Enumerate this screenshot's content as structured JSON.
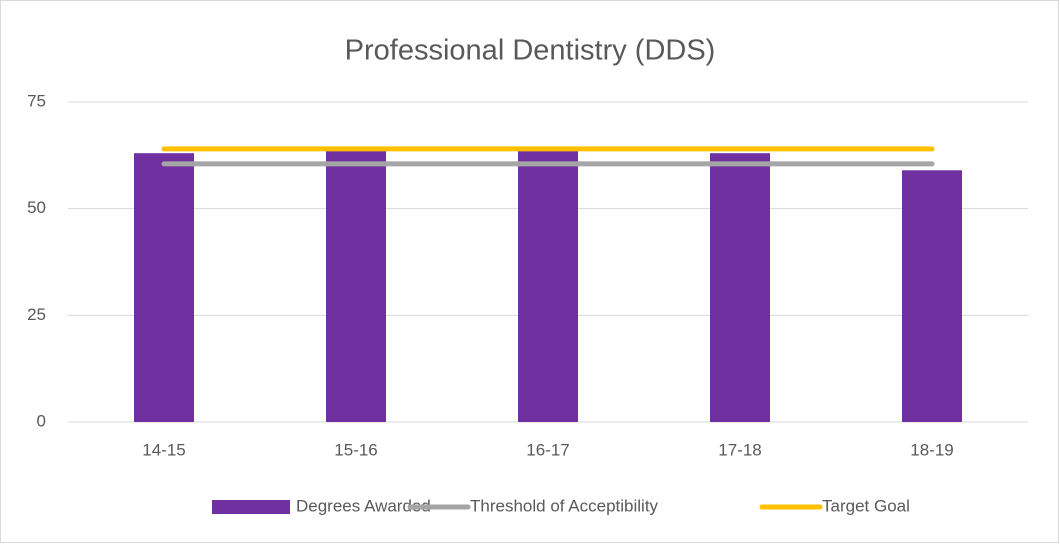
{
  "chart_data": {
    "type": "combo",
    "title": "Professional Dentistry (DDS)",
    "categories": [
      "14-15",
      "15-16",
      "16-17",
      "17-18",
      "18-19"
    ],
    "series": [
      {
        "name": "Degrees Awarded",
        "type": "bar",
        "color": "#7030a0",
        "values": [
          63,
          64,
          64,
          63,
          59
        ]
      },
      {
        "name": "Threshold of Acceptibility",
        "type": "line",
        "color": "#a5a5a5",
        "values": [
          60.5,
          60.5,
          60.5,
          60.5,
          60.5
        ]
      },
      {
        "name": "Target Goal",
        "type": "line",
        "color": "#ffc000",
        "values": [
          64,
          64,
          64,
          64,
          64
        ]
      }
    ],
    "ylim": [
      0,
      75
    ],
    "yticks": [
      0,
      25,
      50,
      75
    ],
    "grid": true,
    "legend": "bottom"
  }
}
